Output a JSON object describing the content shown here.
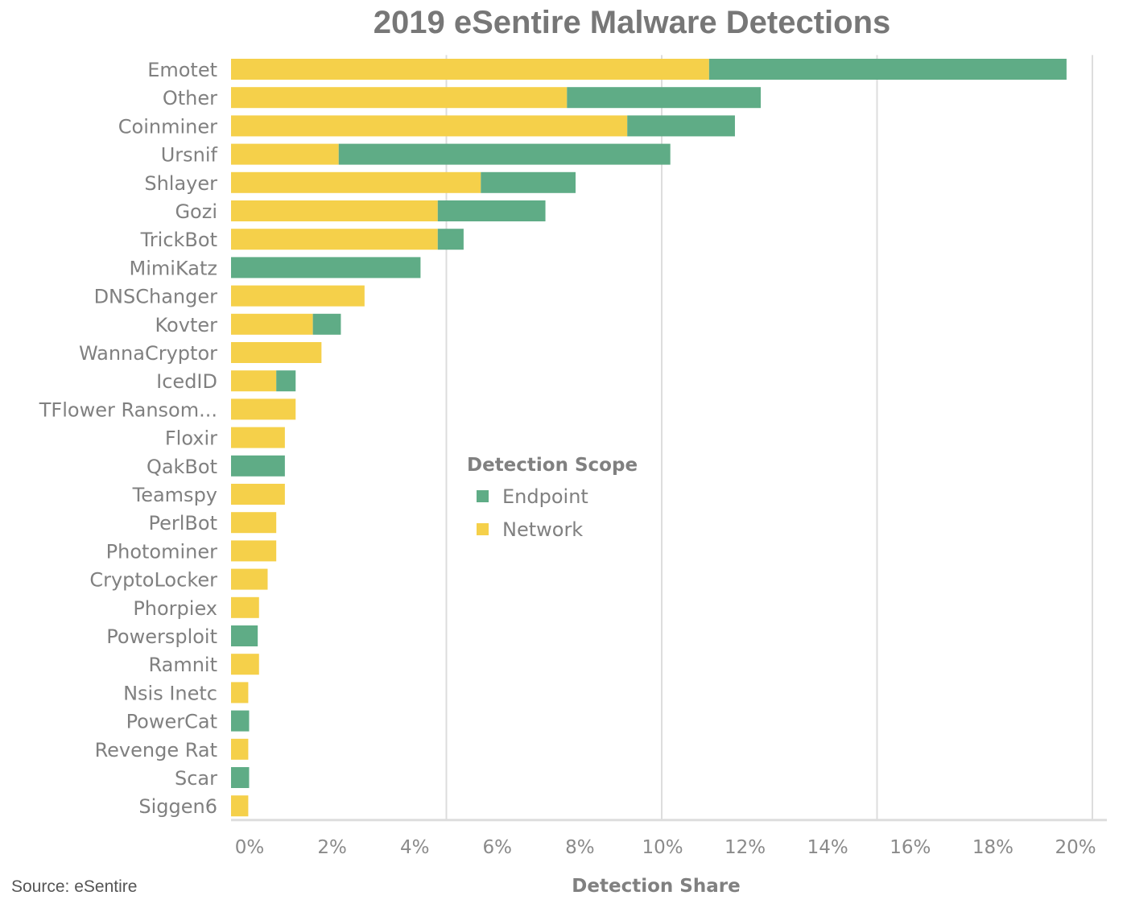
{
  "colors": {
    "endpoint": "#5fac86",
    "network": "#f5d04a",
    "grid": "#dddddd",
    "text": "#808080"
  },
  "source": "Source: eSentire",
  "chart_data": {
    "type": "bar",
    "orientation": "horizontal",
    "stacked": true,
    "title": "2019 eSentire Malware Detections",
    "xlabel": "Detection Share",
    "ylabel": "",
    "xlim": [
      0,
      20
    ],
    "x_ticks": [
      "0%",
      "2%",
      "4%",
      "6%",
      "8%",
      "10%",
      "12%",
      "14%",
      "16%",
      "18%",
      "20%"
    ],
    "grid": true,
    "legend": {
      "title": "Detection Scope",
      "position": "center-right",
      "entries": [
        "Endpoint",
        "Network"
      ]
    },
    "categories": [
      "Emotet",
      "Other",
      "Coinminer",
      "Ursnif",
      "Shlayer",
      "Gozi",
      "TrickBot",
      "MimiKatz",
      "DNSChanger",
      "Kovter",
      "WannaCryptor",
      "IcedID",
      "TFlower Ransom...",
      "Floxir",
      "QakBot",
      "Teamspy",
      "PerlBot",
      "Photominer",
      "CryptoLocker",
      "Phorpiex",
      "Powersploit",
      "Ramnit",
      "Nsis Inetc",
      "PowerCat",
      "Revenge Rat",
      "Scar",
      "Siggen6"
    ],
    "series": [
      {
        "name": "Network",
        "values": [
          11.1,
          7.8,
          9.2,
          2.5,
          5.8,
          4.8,
          4.8,
          0,
          3.1,
          1.9,
          2.1,
          1.05,
          1.5,
          1.25,
          0,
          1.25,
          1.05,
          1.05,
          0.85,
          0.65,
          0,
          0.65,
          0.4,
          0,
          0.4,
          0,
          0.4
        ]
      },
      {
        "name": "Endpoint",
        "values": [
          8.3,
          4.5,
          2.5,
          7.7,
          2.2,
          2.5,
          0.6,
          4.4,
          0,
          0.65,
          0,
          0.45,
          0,
          0,
          1.25,
          0,
          0,
          0,
          0,
          0,
          0.62,
          0,
          0,
          0.42,
          0,
          0.42,
          0
        ]
      }
    ]
  }
}
